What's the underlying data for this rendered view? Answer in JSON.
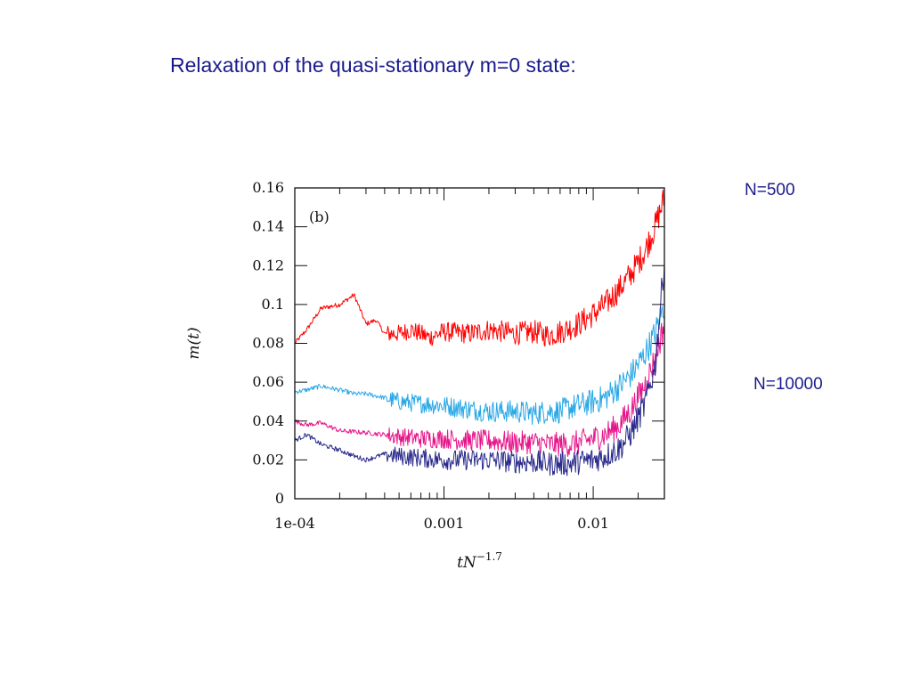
{
  "slide": {
    "title": "Relaxation of the quasi-stationary m=0 state:",
    "annotation_top": "N=500",
    "annotation_bottom": "N=10000"
  },
  "chart_data": {
    "type": "line",
    "panel_label": "(b)",
    "xlabel": "tN^{-1.7}",
    "ylabel": "m(t)",
    "xscale": "log",
    "xlim": [
      0.0001,
      0.03
    ],
    "ylim": [
      0,
      0.16
    ],
    "x_tick_labels": [
      "1e-04",
      "0.001",
      "0.01"
    ],
    "y_tick_labels": [
      "0",
      "0.02",
      "0.04",
      "0.06",
      "0.08",
      "0.1",
      "0.12",
      "0.14",
      "0.16"
    ],
    "grid": false,
    "legend": "none",
    "series": [
      {
        "color": "#ff0000",
        "x": [
          0.0001,
          0.00012,
          0.00015,
          0.0002,
          0.00025,
          0.0003,
          0.00035,
          0.0004,
          0.0005,
          0.0006,
          0.0008,
          0.001,
          0.0015,
          0.002,
          0.003,
          0.004,
          0.005,
          0.006,
          0.007,
          0.008,
          0.01,
          0.012,
          0.015,
          0.018,
          0.022,
          0.026,
          0.03
        ],
        "y": [
          0.08,
          0.087,
          0.098,
          0.1,
          0.105,
          0.09,
          0.092,
          0.085,
          0.085,
          0.087,
          0.083,
          0.086,
          0.085,
          0.087,
          0.085,
          0.086,
          0.084,
          0.086,
          0.088,
          0.09,
          0.095,
          0.1,
          0.108,
          0.116,
          0.127,
          0.14,
          0.155
        ]
      },
      {
        "color": "#29a8e6",
        "x": [
          0.0001,
          0.00012,
          0.00015,
          0.0002,
          0.00025,
          0.0003,
          0.0004,
          0.0005,
          0.0007,
          0.001,
          0.0015,
          0.002,
          0.003,
          0.004,
          0.005,
          0.006,
          0.007,
          0.008,
          0.01,
          0.012,
          0.015,
          0.018,
          0.022,
          0.026,
          0.03
        ],
        "y": [
          0.055,
          0.056,
          0.058,
          0.056,
          0.054,
          0.054,
          0.052,
          0.05,
          0.049,
          0.048,
          0.046,
          0.045,
          0.045,
          0.044,
          0.045,
          0.045,
          0.047,
          0.048,
          0.05,
          0.052,
          0.058,
          0.064,
          0.074,
          0.085,
          0.1
        ]
      },
      {
        "color": "#e6168a",
        "x": [
          0.0001,
          0.00012,
          0.00015,
          0.0002,
          0.0003,
          0.0004,
          0.0005,
          0.0007,
          0.001,
          0.0015,
          0.002,
          0.003,
          0.004,
          0.005,
          0.006,
          0.007,
          0.008,
          0.01,
          0.012,
          0.015,
          0.018,
          0.022,
          0.026,
          0.03
        ],
        "y": [
          0.04,
          0.038,
          0.039,
          0.035,
          0.034,
          0.033,
          0.032,
          0.031,
          0.031,
          0.03,
          0.03,
          0.029,
          0.029,
          0.028,
          0.028,
          0.028,
          0.029,
          0.031,
          0.033,
          0.038,
          0.046,
          0.058,
          0.072,
          0.09
        ]
      },
      {
        "color": "#2a2a8c",
        "x": [
          0.0001,
          0.00012,
          0.00015,
          0.0002,
          0.00025,
          0.0003,
          0.0004,
          0.0005,
          0.0007,
          0.001,
          0.0015,
          0.002,
          0.003,
          0.004,
          0.005,
          0.006,
          0.007,
          0.008,
          0.01,
          0.012,
          0.015,
          0.018,
          0.022,
          0.026,
          0.03
        ],
        "y": [
          0.03,
          0.033,
          0.028,
          0.025,
          0.022,
          0.02,
          0.023,
          0.022,
          0.021,
          0.02,
          0.02,
          0.02,
          0.019,
          0.019,
          0.018,
          0.018,
          0.018,
          0.019,
          0.02,
          0.022,
          0.026,
          0.034,
          0.048,
          0.068,
          0.123
        ]
      }
    ]
  }
}
